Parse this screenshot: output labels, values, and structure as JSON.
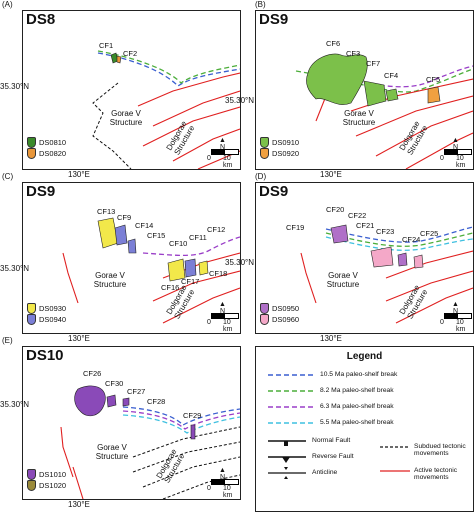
{
  "panels": [
    {
      "letter": "(A)",
      "title": "DS8",
      "structures": {
        "gorae": "Gorae V\nStructure",
        "dolgorae": "Dolgorae\nStructure"
      },
      "latitude": "35.30°N",
      "longitude": "130°E",
      "cfs": [
        "CF1",
        "CF2"
      ],
      "keys": [
        {
          "label": "DS0810",
          "color": "#3a8a2a"
        },
        {
          "label": "DS0820",
          "color": "#e8963a"
        }
      ],
      "scale": {
        "zero": "0",
        "ten": "10 km"
      },
      "north": "N"
    },
    {
      "letter": "(B)",
      "title": "DS9",
      "structures": {
        "gorae": "Gorae V\nStructure",
        "dolgorae": "Dolgorae\nStructure"
      },
      "latitude": "35.30°N",
      "longitude": "130°E",
      "cfs": [
        "CF6",
        "CF3",
        "CF7",
        "CF4",
        "CF5"
      ],
      "keys": [
        {
          "label": "DS0910",
          "color": "#7cc04a"
        },
        {
          "label": "DS0920",
          "color": "#f0a040"
        }
      ],
      "scale": {
        "zero": "0",
        "ten": "10 km"
      },
      "north": "N"
    },
    {
      "letter": "(C)",
      "title": "DS9",
      "structures": {
        "gorae": "Gorae V\nStructure",
        "dolgorae": "Dolgorae\nStructure"
      },
      "latitude": "35.30°N",
      "longitude": "130°E",
      "cfs": [
        "CF13",
        "CF9",
        "CF14",
        "CF15",
        "CF10",
        "CF11",
        "CF12",
        "CF16",
        "CF17",
        "CF18"
      ],
      "keys": [
        {
          "label": "DS0930",
          "color": "#f2e84a"
        },
        {
          "label": "DS0940",
          "color": "#7b7fd6"
        }
      ],
      "scale": {
        "zero": "0",
        "ten": "10 km"
      },
      "north": "N"
    },
    {
      "letter": "(D)",
      "title": "DS9",
      "structures": {
        "gorae": "Gorae V\nStructure",
        "dolgorae": "Dolgorae\nStructure"
      },
      "latitude": "35.30°N",
      "longitude": "130°E",
      "cfs": [
        "CF19",
        "CF20",
        "CF22",
        "CF21",
        "CF23",
        "CF24",
        "CF25"
      ],
      "keys": [
        {
          "label": "DS0950",
          "color": "#b070c8"
        },
        {
          "label": "DS0960",
          "color": "#f4a8c8"
        }
      ],
      "scale": {
        "zero": "0",
        "ten": "10 km"
      },
      "north": "N"
    },
    {
      "letter": "(E)",
      "title": "DS10",
      "structures": {
        "gorae": "Gorae V\nStructure",
        "dolgorae": "Dolgorae\nStructure"
      },
      "latitude": "35.30°N",
      "longitude": "130°E",
      "cfs": [
        "CF26",
        "CF30",
        "CF27",
        "CF28",
        "CF29"
      ],
      "keys": [
        {
          "label": "DS1010",
          "color": "#8a4ab8"
        },
        {
          "label": "DS1020",
          "color": "#9a8a3a"
        }
      ],
      "scale": {
        "zero": "0",
        "ten": "10 km"
      },
      "north": "N"
    }
  ],
  "legend": {
    "title": "Legend",
    "shelf_breaks": [
      {
        "label": "10.5 Ma paleo-shelf break",
        "color": "#3a5fd0"
      },
      {
        "label": "8.2 Ma paleo-shelf break",
        "color": "#4cae3a"
      },
      {
        "label": "6.3 Ma paleo-shelf break",
        "color": "#9a3ec8"
      },
      {
        "label": "5.5 Ma paleo-shelf break",
        "color": "#3fc0e0"
      }
    ],
    "normal_fault": "Normal Fault",
    "reverse_fault": "Reverse Fault",
    "anticline": "Anticline",
    "subdued": "Subdued tectonic\nmovements",
    "active": "Active tectonic\nmovements",
    "subdued_color": "#111111",
    "active_color": "#e02020"
  }
}
